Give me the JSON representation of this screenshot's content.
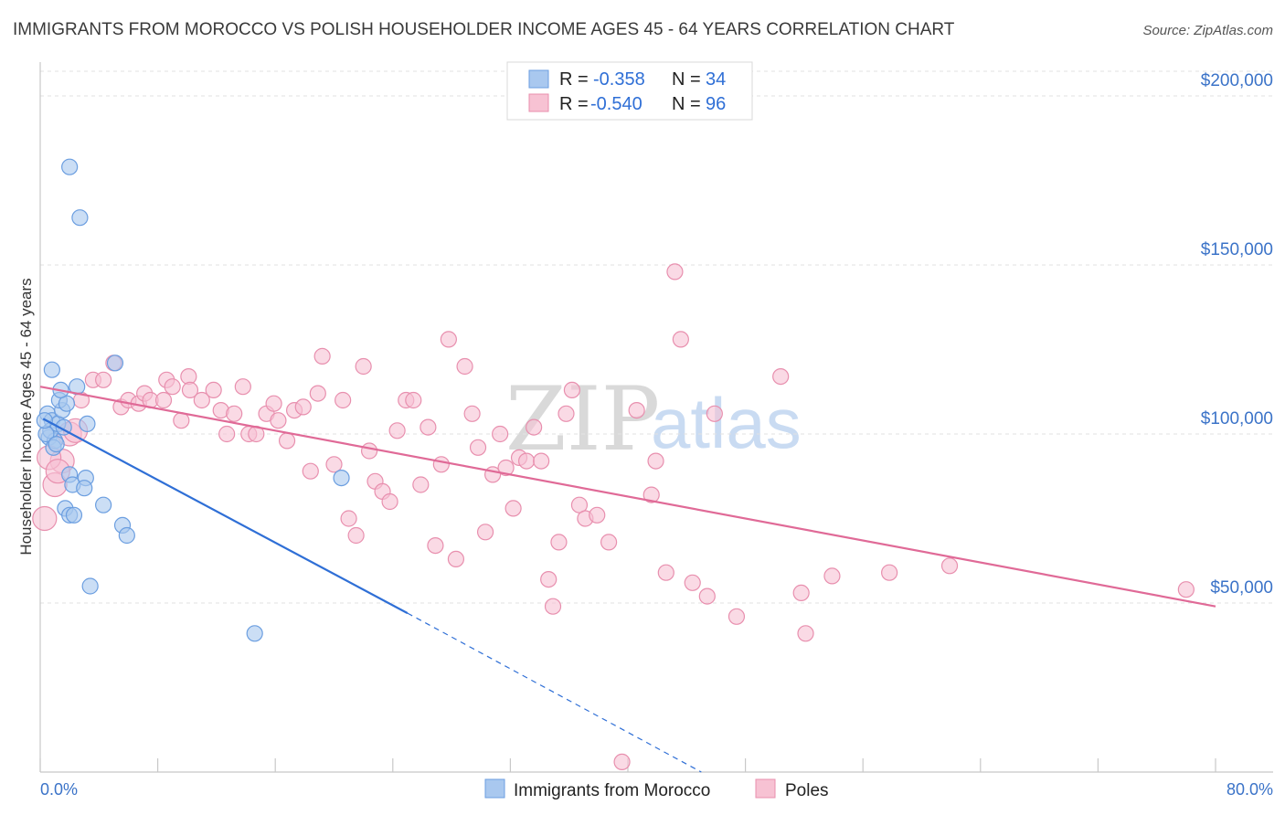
{
  "chart_data": {
    "type": "scatter",
    "title": "IMMIGRANTS FROM MOROCCO VS POLISH HOUSEHOLDER INCOME AGES 45 - 64 YEARS CORRELATION CHART",
    "source": "Source: ZipAtlas.com",
    "xlabel": "",
    "ylabel": "Householder Income Ages 45 - 64 years",
    "xlim": [
      0,
      80
    ],
    "ylim": [
      0,
      210000
    ],
    "x_tick_labels": [
      "0.0%",
      "80.0%"
    ],
    "y_ticks": [
      {
        "value": 50000,
        "label": "$50,000"
      },
      {
        "value": 100000,
        "label": "$100,000"
      },
      {
        "value": 150000,
        "label": "$150,000"
      },
      {
        "value": 200000,
        "label": "$200,000"
      }
    ],
    "watermark": {
      "zip": "ZIP",
      "atlas": "atlas"
    },
    "legend": {
      "r_label": "R =",
      "n_label": "N =",
      "entries": [
        {
          "r": "-0.358",
          "n": "34"
        },
        {
          "r": "-0.540",
          "n": "96"
        }
      ]
    },
    "series": [
      {
        "name": "Immigrants from Morocco",
        "color": "#a9c8ef",
        "stroke": "#6b9ee0",
        "line_color": "#2f6fd6",
        "trend": {
          "x0": 0.2,
          "y0": 104500,
          "x1": 25,
          "y1": 47000,
          "dash_x1": 45,
          "dash_y1": 0
        },
        "points": [
          [
            0.5,
            106000
          ],
          [
            0.8,
            104000
          ],
          [
            0.6,
            99000
          ],
          [
            1.0,
            98000
          ],
          [
            0.7,
            101000
          ],
          [
            1.2,
            103000
          ],
          [
            0.9,
            96000
          ],
          [
            1.5,
            107000
          ],
          [
            1.3,
            110000
          ],
          [
            1.8,
            109000
          ],
          [
            1.4,
            113000
          ],
          [
            2.5,
            114000
          ],
          [
            0.8,
            119000
          ],
          [
            2.0,
            88000
          ],
          [
            2.2,
            85000
          ],
          [
            3.1,
            87000
          ],
          [
            3.0,
            84000
          ],
          [
            3.2,
            103000
          ],
          [
            1.7,
            78000
          ],
          [
            2.0,
            76000
          ],
          [
            2.3,
            76000
          ],
          [
            4.3,
            79000
          ],
          [
            5.6,
            73000
          ],
          [
            5.9,
            70000
          ],
          [
            3.4,
            55000
          ],
          [
            5.1,
            121000
          ],
          [
            2.0,
            179000
          ],
          [
            2.7,
            164000
          ],
          [
            14.6,
            41000
          ],
          [
            20.5,
            87000
          ],
          [
            0.4,
            100000
          ],
          [
            1.1,
            97000
          ],
          [
            0.3,
            104000
          ],
          [
            1.6,
            102000
          ]
        ]
      },
      {
        "name": "Poles",
        "color": "#f7c2d3",
        "stroke": "#e88fae",
        "line_color": "#e06a97",
        "trend": {
          "x0": 0,
          "y0": 114000,
          "x1": 80,
          "y1": 49000
        },
        "points": [
          [
            0.3,
            75000
          ],
          [
            1.0,
            85000
          ],
          [
            1.5,
            92000
          ],
          [
            2.0,
            100000
          ],
          [
            2.8,
            110000
          ],
          [
            3.6,
            116000
          ],
          [
            4.3,
            116000
          ],
          [
            5.0,
            121000
          ],
          [
            5.5,
            108000
          ],
          [
            6.0,
            110000
          ],
          [
            6.7,
            109000
          ],
          [
            7.1,
            112000
          ],
          [
            7.5,
            110000
          ],
          [
            8.4,
            110000
          ],
          [
            8.6,
            116000
          ],
          [
            9.0,
            114000
          ],
          [
            9.6,
            104000
          ],
          [
            10.1,
            117000
          ],
          [
            10.2,
            113000
          ],
          [
            11.0,
            110000
          ],
          [
            11.8,
            113000
          ],
          [
            12.3,
            107000
          ],
          [
            12.7,
            100000
          ],
          [
            13.2,
            106000
          ],
          [
            13.8,
            114000
          ],
          [
            14.2,
            100000
          ],
          [
            14.7,
            100000
          ],
          [
            15.4,
            106000
          ],
          [
            15.9,
            109000
          ],
          [
            16.2,
            104000
          ],
          [
            16.8,
            98000
          ],
          [
            17.3,
            107000
          ],
          [
            17.9,
            108000
          ],
          [
            18.4,
            89000
          ],
          [
            18.9,
            112000
          ],
          [
            19.2,
            123000
          ],
          [
            20.0,
            91000
          ],
          [
            20.6,
            110000
          ],
          [
            21.0,
            75000
          ],
          [
            21.5,
            70000
          ],
          [
            22.0,
            120000
          ],
          [
            22.4,
            95000
          ],
          [
            22.8,
            86000
          ],
          [
            23.3,
            83000
          ],
          [
            23.8,
            80000
          ],
          [
            24.3,
            101000
          ],
          [
            24.9,
            110000
          ],
          [
            25.4,
            110000
          ],
          [
            25.9,
            85000
          ],
          [
            26.4,
            102000
          ],
          [
            26.9,
            67000
          ],
          [
            27.3,
            91000
          ],
          [
            27.8,
            128000
          ],
          [
            28.3,
            63000
          ],
          [
            28.9,
            120000
          ],
          [
            29.4,
            106000
          ],
          [
            29.8,
            96000
          ],
          [
            30.3,
            71000
          ],
          [
            30.8,
            88000
          ],
          [
            31.3,
            100000
          ],
          [
            31.7,
            90000
          ],
          [
            32.2,
            78000
          ],
          [
            32.6,
            93000
          ],
          [
            33.1,
            92000
          ],
          [
            33.6,
            102000
          ],
          [
            34.1,
            92000
          ],
          [
            34.6,
            57000
          ],
          [
            34.9,
            49000
          ],
          [
            35.3,
            68000
          ],
          [
            35.8,
            106000
          ],
          [
            36.2,
            113000
          ],
          [
            36.7,
            79000
          ],
          [
            37.1,
            75000
          ],
          [
            37.9,
            76000
          ],
          [
            38.7,
            68000
          ],
          [
            39.6,
            3000
          ],
          [
            40.6,
            107000
          ],
          [
            41.6,
            82000
          ],
          [
            41.9,
            92000
          ],
          [
            42.6,
            59000
          ],
          [
            43.2,
            148000
          ],
          [
            43.6,
            128000
          ],
          [
            44.4,
            56000
          ],
          [
            45.4,
            52000
          ],
          [
            45.9,
            106000
          ],
          [
            47.4,
            46000
          ],
          [
            50.4,
            117000
          ],
          [
            51.8,
            53000
          ],
          [
            52.1,
            41000
          ],
          [
            53.9,
            58000
          ],
          [
            57.8,
            59000
          ],
          [
            61.9,
            61000
          ],
          [
            78.0,
            54000
          ],
          [
            0.6,
            93000
          ],
          [
            1.2,
            89000
          ],
          [
            2.4,
            101000
          ]
        ]
      }
    ]
  }
}
